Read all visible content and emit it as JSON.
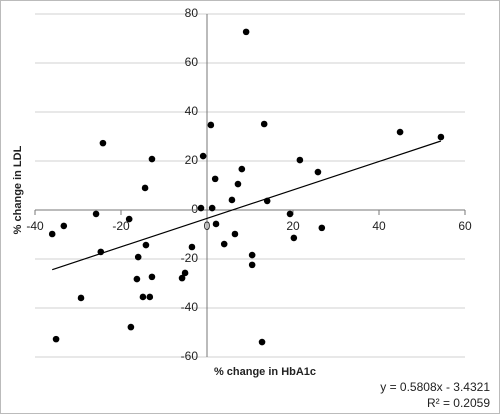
{
  "chart_data": {
    "type": "scatter",
    "x_label": "% change in HbA1c",
    "y_label": "% change in LDL",
    "xlim": [
      -40,
      60
    ],
    "xticks": [
      -40,
      -20,
      0,
      20,
      40,
      60
    ],
    "ylim": [
      -60,
      80
    ],
    "yticks": [
      -60,
      -40,
      -20,
      0,
      20,
      40,
      60,
      80
    ],
    "grid": true,
    "color": "#000000",
    "x": [
      9.1,
      0.9,
      13.3,
      54.4,
      44.9,
      -24.2,
      -12.8,
      -0.9,
      21.6,
      8.1,
      25.8,
      1.9,
      7.2,
      -14.4,
      5.8,
      14.0,
      -1.4,
      1.2,
      -25.8,
      19.3,
      -18.1,
      2.1,
      -33.3,
      26.7,
      -36.0,
      6.5,
      20.2,
      4.0,
      -14.2,
      -3.5,
      -24.7,
      10.5,
      -16.0,
      10.5,
      -5.1,
      -12.8,
      -5.8,
      -16.3,
      -29.3,
      -14.9,
      -13.3,
      -17.7,
      -35.1,
      12.8
    ],
    "values": [
      72.7,
      34.7,
      35.1,
      29.8,
      31.8,
      27.3,
      20.8,
      22.0,
      20.4,
      16.7,
      15.5,
      12.7,
      10.6,
      9.0,
      4.1,
      3.7,
      0.8,
      0.8,
      -1.6,
      -1.6,
      -3.7,
      -5.7,
      -6.5,
      -7.3,
      -9.8,
      -9.8,
      -11.4,
      -13.9,
      -14.3,
      -15.1,
      -17.1,
      -18.4,
      -19.2,
      -22.4,
      -25.7,
      -27.3,
      -27.8,
      -28.2,
      -35.9,
      -35.5,
      -35.5,
      -47.8,
      -52.7,
      -53.9
    ],
    "trendline": {
      "slope": 0.5808,
      "intercept": -3.4321,
      "label": "y = 0.5808x - 3.4321"
    },
    "r_squared": {
      "value": 0.2059,
      "label": "R² = 0.2059"
    }
  }
}
